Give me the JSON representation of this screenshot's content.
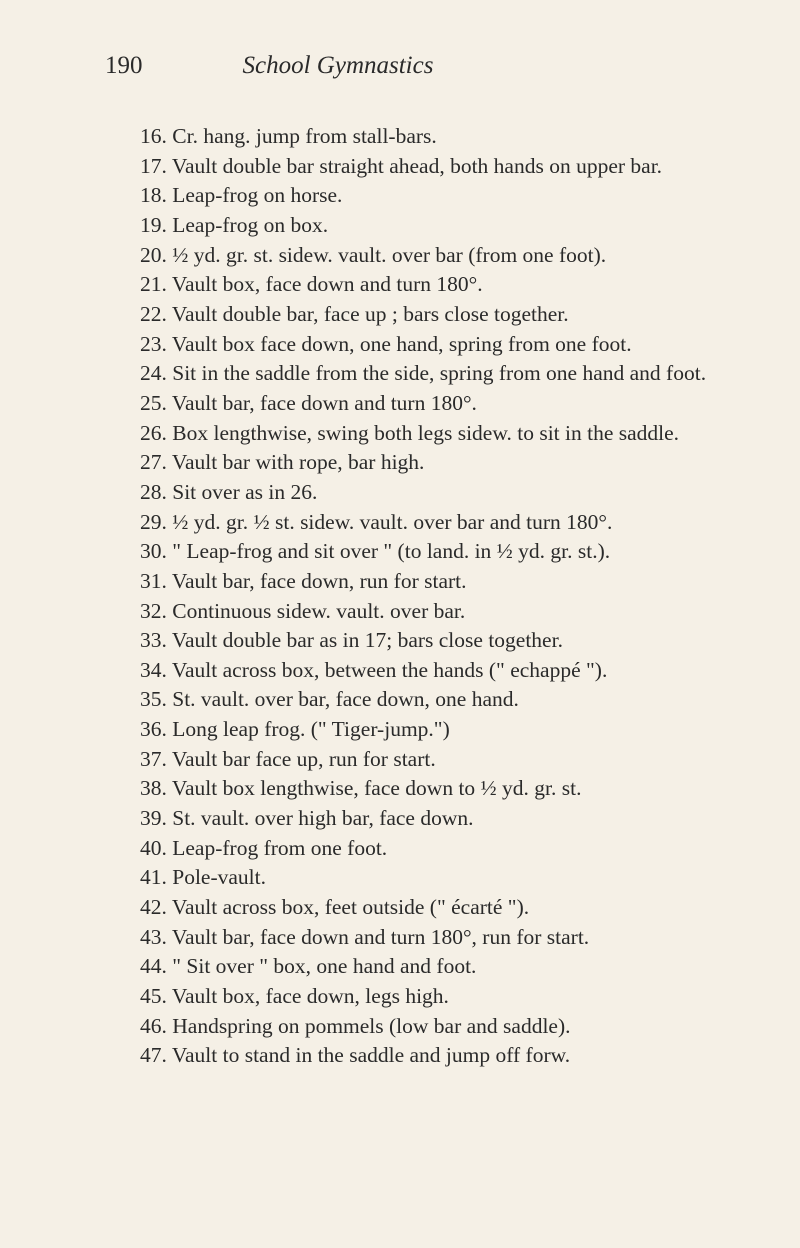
{
  "header": {
    "pageNumber": "190",
    "title": "School Gymnastics"
  },
  "items": [
    {
      "text": "16.  Cr. hang. jump from stall-bars."
    },
    {
      "text": "17.  Vault double bar straight ahead, both hands on upper bar.",
      "wrap": true
    },
    {
      "text": "18.  Leap-frog on horse."
    },
    {
      "text": "19.  Leap-frog on box."
    },
    {
      "text": "20.  ½ yd. gr. st. sidew. vault. over bar (from one foot).",
      "wrap": true
    },
    {
      "text": "21.  Vault box, face down and turn 180°."
    },
    {
      "text": "22.  Vault double bar, face up ; bars close together."
    },
    {
      "text": "23.  Vault box face down, one hand, spring from one foot.",
      "wrap": true
    },
    {
      "text": "24.  Sit in the saddle from the side, spring from one hand and foot.",
      "wrap": true
    },
    {
      "text": "25.  Vault bar, face down and turn 180°."
    },
    {
      "text": "26.  Box lengthwise, swing both legs sidew. to sit in the saddle.",
      "wrap": true
    },
    {
      "text": "27.  Vault bar with rope, bar high."
    },
    {
      "text": "28.  Sit over as in 26."
    },
    {
      "text": "29.  ½ yd. gr. ½ st. sidew. vault. over bar and turn 180°.",
      "wrap": true
    },
    {
      "text": "30.  \" Leap-frog and sit over \" (to land. in ½ yd. gr. st.).",
      "wrap": true
    },
    {
      "text": "31.  Vault bar, face down, run for start."
    },
    {
      "text": "32.  Continuous sidew. vault. over bar."
    },
    {
      "text": "33.  Vault double bar as in 17; bars close together."
    },
    {
      "text": "34.  Vault across box, between the hands (\" echappé \").",
      "wrap": true
    },
    {
      "text": "35.  St. vault. over bar, face down, one hand."
    },
    {
      "text": "36.  Long leap frog.   (\" Tiger-jump.\")"
    },
    {
      "text": "37.  Vault bar face up, run for start."
    },
    {
      "text": "38.  Vault box lengthwise, face down to ½ yd. gr. st."
    },
    {
      "text": "39.  St. vault. over high bar, face down."
    },
    {
      "text": "40.  Leap-frog from one foot."
    },
    {
      "text": "41.  Pole-vault."
    },
    {
      "text": "42.  Vault across box, feet outside (\" écarté \")."
    },
    {
      "text": "43.  Vault bar, face down and turn 180°, run for start.",
      "wrap": true
    },
    {
      "text": "44.  \" Sit over \" box, one hand and foot."
    },
    {
      "text": "45.  Vault box, face down, legs high."
    },
    {
      "text": "46.  Handspring on pommels (low bar and saddle)."
    },
    {
      "text": "47.  Vault to stand in the saddle and jump off forw."
    }
  ]
}
